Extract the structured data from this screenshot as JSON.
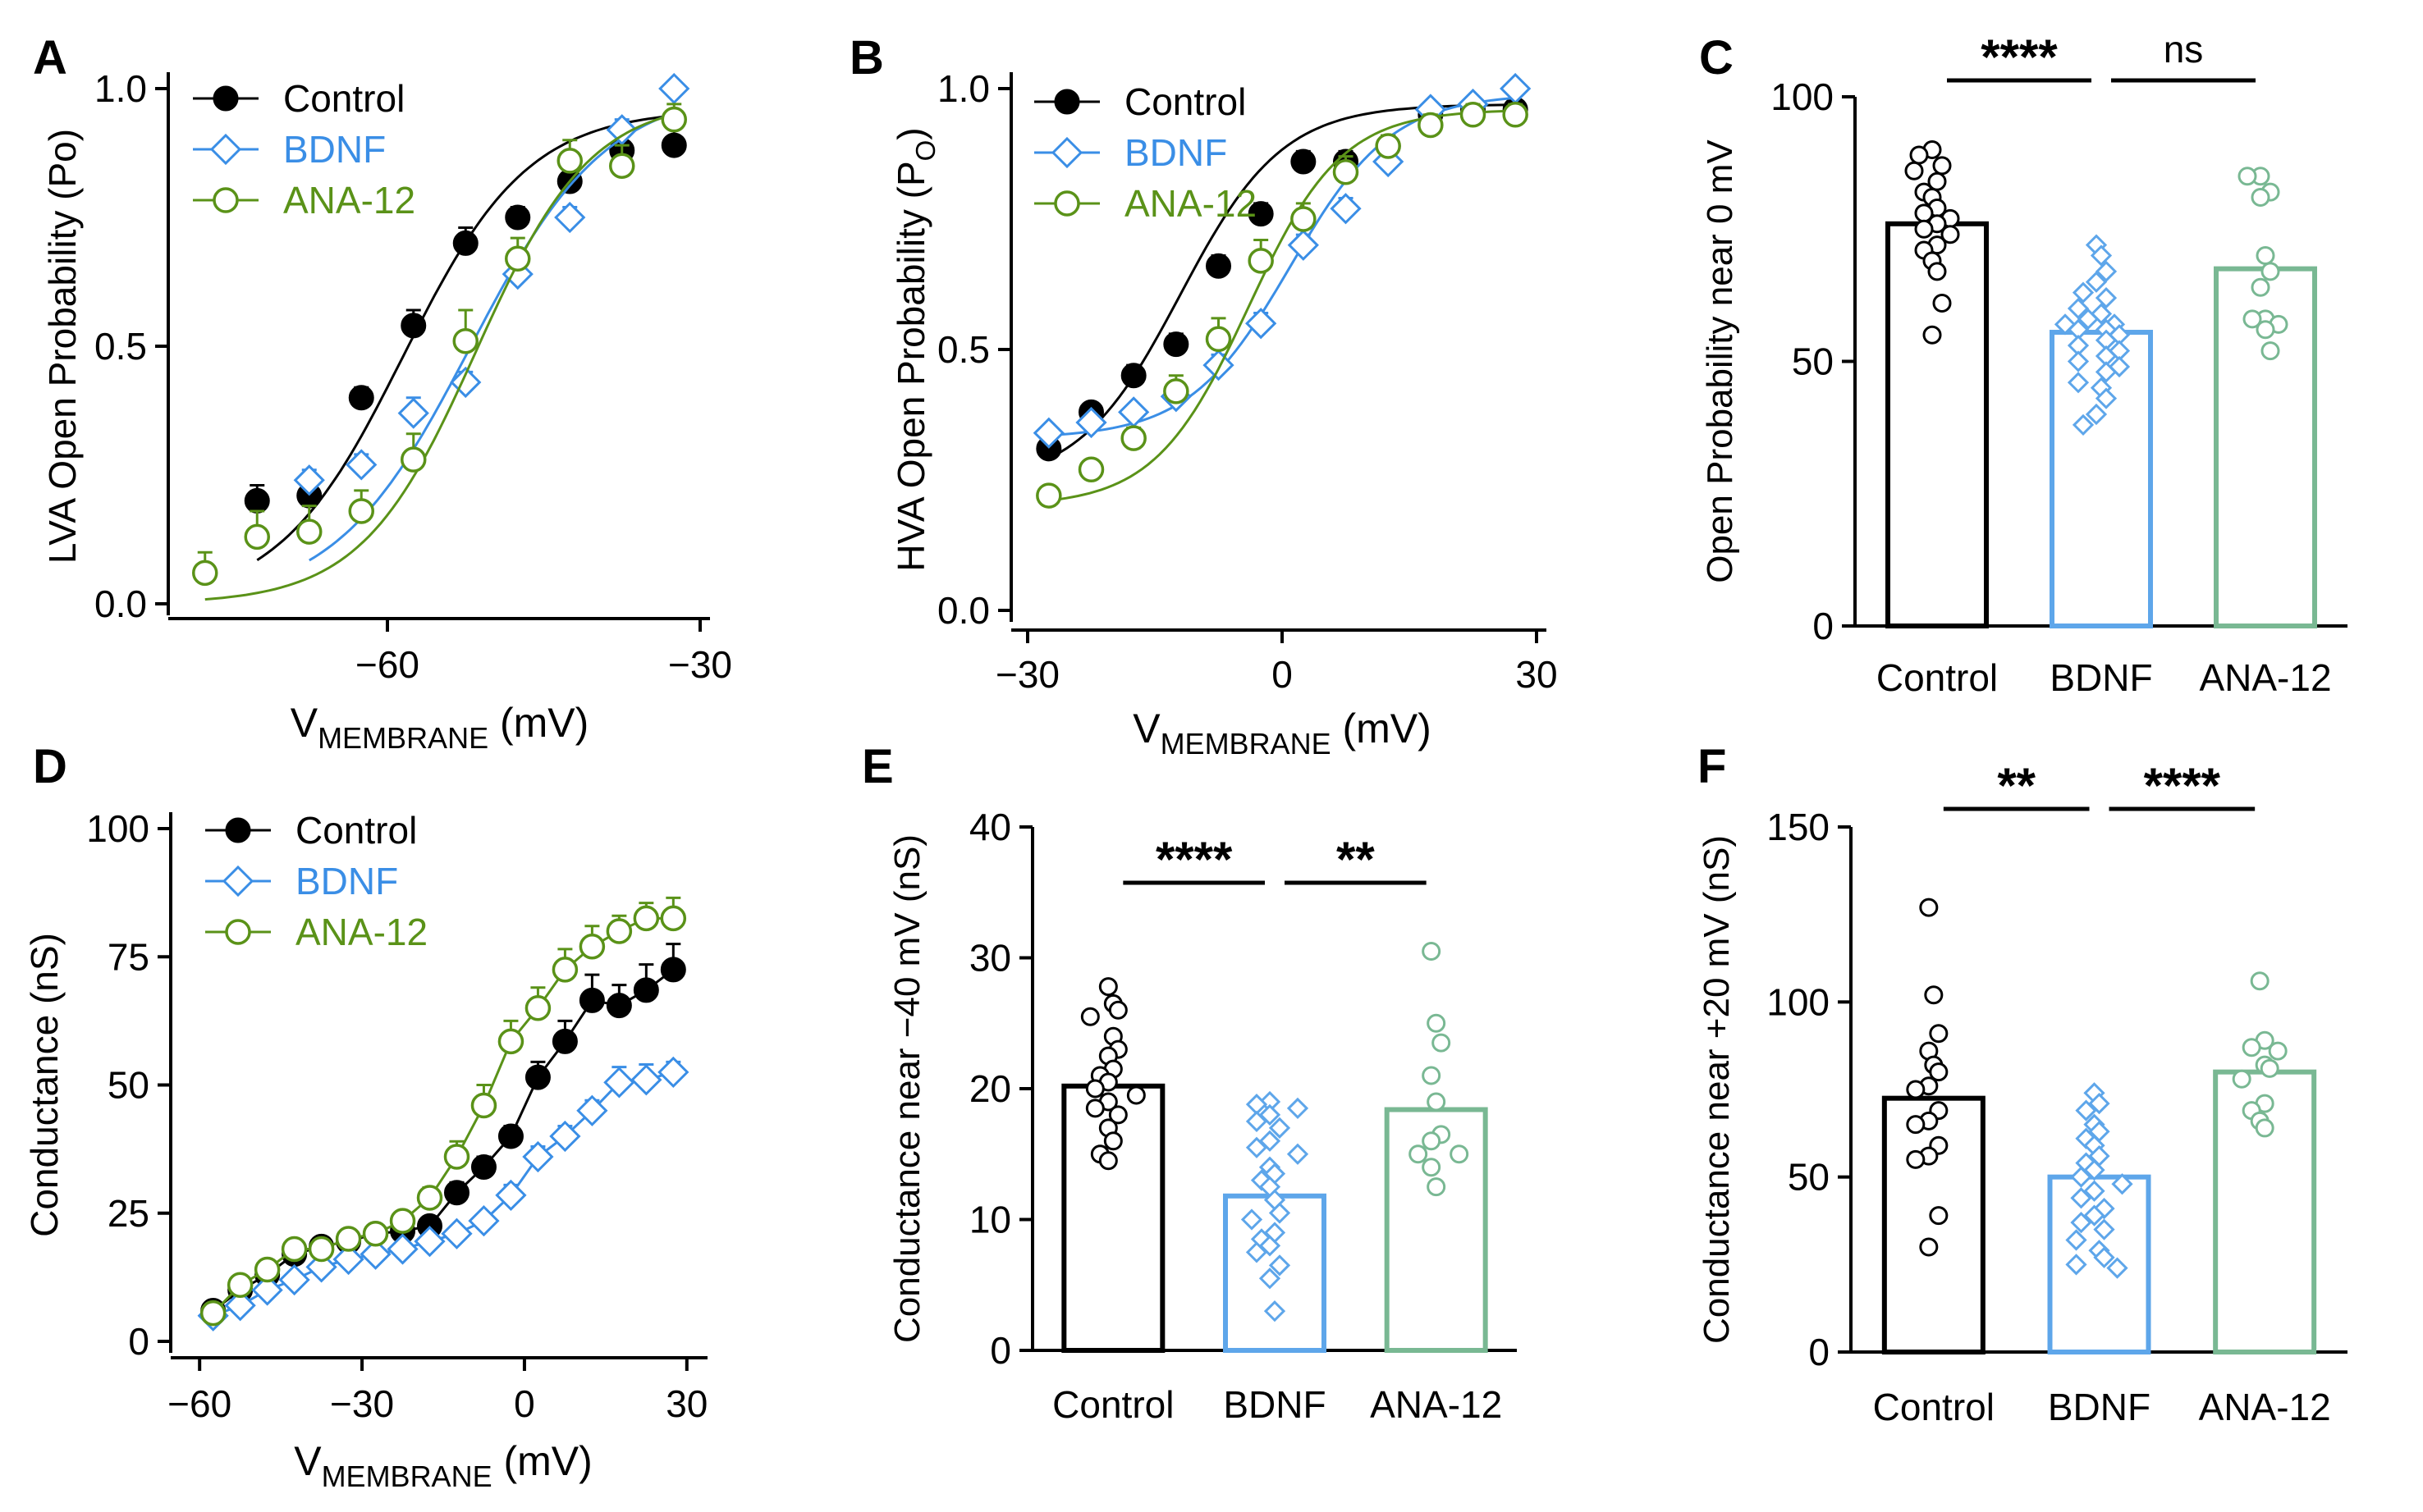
{
  "colors": {
    "control": "#000000",
    "bdnf": "#3a8ee6",
    "ana12": "#5a9218",
    "ana12_bar": "#79b893"
  },
  "chart_data": [
    {
      "panel": "A",
      "type": "line",
      "xlabel": {
        "main": "V",
        "sub": "MEMBRANE",
        "unit": " (mV)"
      },
      "ylabel": {
        "main": "LVA Open Probability (Po)",
        "sub": "",
        "unit": ""
      },
      "xlim": [
        -80,
        -30
      ],
      "ylim": [
        0,
        1
      ],
      "xticks": [
        -60,
        -30
      ],
      "xtick_labels": [
        "−60",
        "−30"
      ],
      "yticks": [
        0,
        0.5,
        1
      ],
      "ytick_labels": [
        "0.0",
        "0.5",
        "1.0"
      ],
      "legend_position": "top-left",
      "series": [
        {
          "name": "Control",
          "color": "#000000",
          "marker": "circle-filled",
          "x": [
            -72.5,
            -67.5,
            -62.5,
            -57.5,
            -52.5,
            -47.5,
            -42.5,
            -37.5,
            -32.5
          ],
          "y": [
            0.2,
            0.21,
            0.4,
            0.54,
            0.7,
            0.75,
            0.82,
            0.88,
            0.89
          ],
          "err": [
            0.03,
            0.03,
            0.02,
            0.03,
            0.03,
            0.02,
            0.02,
            0.03,
            0.04
          ],
          "fit": {
            "vhalf": -58.5,
            "k": 6.0,
            "bottom": 0.0,
            "top": 0.96
          }
        },
        {
          "name": "BDNF",
          "color": "#3a8ee6",
          "marker": "diamond-open",
          "x": [
            -67.5,
            -62.5,
            -57.5,
            -52.5,
            -47.5,
            -42.5,
            -37.5,
            -32.5
          ],
          "y": [
            0.24,
            0.27,
            0.37,
            0.43,
            0.64,
            0.75,
            0.92,
            1.0
          ],
          "err": [
            0.02,
            0.02,
            0.03,
            0.02,
            0.03,
            0.02,
            0.02,
            0.01
          ],
          "fit": {
            "vhalf": -52,
            "k": 6.5,
            "bottom": 0.0,
            "top": 1.0
          }
        },
        {
          "name": "ANA-12",
          "color": "#5a9218",
          "marker": "circle-open",
          "x": [
            -77.5,
            -72.5,
            -67.5,
            -62.5,
            -57.5,
            -52.5,
            -47.5,
            -42.5,
            -37.5,
            -32.5
          ],
          "y": [
            0.06,
            0.13,
            0.14,
            0.18,
            0.28,
            0.51,
            0.67,
            0.86,
            0.85,
            0.94
          ],
          "err": [
            0.04,
            0.05,
            0.05,
            0.04,
            0.05,
            0.06,
            0.04,
            0.04,
            0.04,
            0.03
          ],
          "fit": {
            "vhalf": -51.5,
            "k": 5.5,
            "bottom": 0.0,
            "top": 0.98
          }
        }
      ]
    },
    {
      "panel": "B",
      "type": "line",
      "xlabel": {
        "main": "V",
        "sub": "MEMBRANE",
        "unit": " (mV)"
      },
      "ylabel": {
        "main": "HVA Open Probability (P",
        "sub": "O",
        "unit": ")"
      },
      "xlim": [
        -30,
        30
      ],
      "ylim": [
        0,
        1
      ],
      "xticks": [
        -30,
        0,
        30
      ],
      "xtick_labels": [
        "−30",
        "0",
        "30"
      ],
      "yticks": [
        0,
        0.5,
        1
      ],
      "ytick_labels": [
        "0.0",
        "0.5",
        "1.0"
      ],
      "legend_position": "top-left",
      "series": [
        {
          "name": "Control",
          "color": "#000000",
          "marker": "circle-filled",
          "x": [
            -27.5,
            -22.5,
            -17.5,
            -12.5,
            -7.5,
            -2.5,
            2.5,
            7.5,
            12.5,
            17.5,
            22.5,
            27.5
          ],
          "y": [
            0.31,
            0.38,
            0.45,
            0.51,
            0.66,
            0.76,
            0.86,
            0.86,
            0.89,
            0.95,
            0.96,
            0.96
          ],
          "err": [
            0.01,
            0.01,
            0.02,
            0.02,
            0.02,
            0.02,
            0.02,
            0.02,
            0.02,
            0.01,
            0.01,
            0.01
          ],
          "fit": {
            "vhalf": -12,
            "k": 6.0,
            "bottom": 0.24,
            "top": 0.97
          }
        },
        {
          "name": "BDNF",
          "color": "#3a8ee6",
          "marker": "diamond-open",
          "x": [
            -27.5,
            -22.5,
            -17.5,
            -12.5,
            -7.5,
            -2.5,
            2.5,
            7.5,
            12.5,
            17.5,
            22.5,
            27.5
          ],
          "y": [
            0.34,
            0.36,
            0.38,
            0.41,
            0.47,
            0.55,
            0.7,
            0.77,
            0.86,
            0.96,
            0.97,
            1.0
          ],
          "err": [
            0.01,
            0.01,
            0.01,
            0.02,
            0.02,
            0.02,
            0.02,
            0.02,
            0.02,
            0.01,
            0.01,
            0.01
          ],
          "fit": {
            "vhalf": 1,
            "k": 6.0,
            "bottom": 0.33,
            "top": 0.99
          }
        },
        {
          "name": "ANA-12",
          "color": "#5a9218",
          "marker": "circle-open",
          "x": [
            -27.5,
            -22.5,
            -17.5,
            -12.5,
            -7.5,
            -2.5,
            2.5,
            7.5,
            12.5,
            17.5,
            22.5,
            27.5
          ],
          "y": [
            0.22,
            0.27,
            0.33,
            0.42,
            0.52,
            0.67,
            0.75,
            0.84,
            0.89,
            0.93,
            0.95,
            0.95
          ],
          "err": [
            0.01,
            0.01,
            0.02,
            0.03,
            0.04,
            0.04,
            0.03,
            0.03,
            0.02,
            0.02,
            0.02,
            0.02
          ],
          "fit": {
            "vhalf": -4,
            "k": 5.5,
            "bottom": 0.2,
            "top": 0.96
          }
        }
      ]
    },
    {
      "panel": "C",
      "type": "bar",
      "ylabel": "Open Probability near 0 mV",
      "ylim": [
        0,
        100
      ],
      "yticks": [
        0,
        50,
        100
      ],
      "ytick_labels": [
        "0",
        "50",
        "100"
      ],
      "categories": [
        "Control",
        "BDNF",
        "ANA-12"
      ],
      "values": [
        76,
        55.5,
        67.5
      ],
      "colors": [
        "#000000",
        "#5ea6ea",
        "#79b893"
      ],
      "markers": [
        "circle",
        "diamond",
        "circle"
      ],
      "points": [
        [
          90,
          89,
          87,
          86,
          84,
          82,
          81,
          79,
          78,
          77,
          76,
          75,
          74,
          72,
          71,
          69,
          67,
          61,
          55
        ],
        [
          72,
          70,
          67,
          65,
          63,
          62,
          60,
          59,
          58,
          57,
          57,
          56,
          56,
          55,
          54,
          53,
          52,
          51,
          50,
          49,
          48,
          46,
          45,
          43,
          40,
          38
        ],
        [
          85,
          85,
          82,
          81,
          70,
          67,
          64,
          58,
          58,
          57,
          56,
          52
        ]
      ],
      "significance": [
        {
          "from": 0,
          "to": 1,
          "label": "****"
        },
        {
          "from": 1,
          "to": 2,
          "label": "ns"
        }
      ]
    },
    {
      "panel": "D",
      "type": "line",
      "xlabel": {
        "main": "V",
        "sub": "MEMBRANE",
        "unit": " (mV)"
      },
      "ylabel": {
        "main": "Conductance (nS)",
        "sub": "",
        "unit": ""
      },
      "xlim": [
        -62,
        32
      ],
      "ylim": [
        0,
        100
      ],
      "xticks": [
        -60,
        -30,
        0,
        30
      ],
      "xtick_labels": [
        "−60",
        "−30",
        "0",
        "30"
      ],
      "yticks": [
        0,
        25,
        50,
        75,
        100
      ],
      "ytick_labels": [
        "0",
        "25",
        "50",
        "75",
        "100"
      ],
      "legend_position": "top-left",
      "series": [
        {
          "name": "Control",
          "color": "#000000",
          "marker": "circle-filled",
          "x": [
            -57.5,
            -52.5,
            -47.5,
            -42.5,
            -37.5,
            -32.5,
            -27.5,
            -22.5,
            -17.5,
            -12.5,
            -7.5,
            -2.5,
            2.5,
            7.5,
            12.5,
            17.5,
            22.5,
            27.5
          ],
          "y": [
            6,
            10,
            13,
            17,
            18.5,
            19.5,
            21,
            21.5,
            22.5,
            29,
            34,
            40,
            51.5,
            58.5,
            66.5,
            65.5,
            68.5,
            72.5
          ],
          "err": [
            1,
            1,
            1,
            1,
            1,
            1,
            1,
            1,
            1,
            2,
            2,
            2,
            3,
            4,
            5,
            4,
            5,
            5
          ]
        },
        {
          "name": "BDNF",
          "color": "#3a8ee6",
          "marker": "diamond-open",
          "x": [
            -57.5,
            -52.5,
            -47.5,
            -42.5,
            -37.5,
            -32.5,
            -27.5,
            -22.5,
            -17.5,
            -12.5,
            -7.5,
            -2.5,
            2.5,
            7.5,
            12.5,
            17.5,
            22.5,
            27.5
          ],
          "y": [
            5,
            7,
            10,
            12,
            14.5,
            16,
            17,
            18,
            19.5,
            21,
            23.5,
            28.5,
            36,
            40,
            45,
            50.5,
            51,
            52.5
          ],
          "err": [
            1,
            1,
            1,
            1,
            1,
            1,
            1,
            1,
            1,
            1,
            1,
            2,
            2,
            2,
            2,
            3,
            3,
            2
          ]
        },
        {
          "name": "ANA-12",
          "color": "#5a9218",
          "marker": "circle-open",
          "x": [
            -57.5,
            -52.5,
            -47.5,
            -42.5,
            -37.5,
            -32.5,
            -27.5,
            -22.5,
            -17.5,
            -12.5,
            -7.5,
            -2.5,
            2.5,
            7.5,
            12.5,
            17.5,
            22.5,
            27.5
          ],
          "y": [
            5.5,
            11,
            14,
            18,
            18,
            20,
            21,
            23.5,
            28,
            36,
            46,
            58.5,
            65,
            72.5,
            77,
            80,
            82.5,
            82.5
          ],
          "err": [
            1,
            1,
            1,
            1,
            1,
            1,
            1,
            1,
            2,
            3,
            4,
            4,
            4,
            4,
            4,
            3,
            3,
            4
          ]
        }
      ]
    },
    {
      "panel": "E",
      "type": "bar",
      "ylabel": "Conductance near −40 mV (nS)",
      "ylim": [
        0,
        40
      ],
      "yticks": [
        0,
        10,
        20,
        30,
        40
      ],
      "ytick_labels": [
        "0",
        "10",
        "20",
        "30",
        "40"
      ],
      "categories": [
        "Control",
        "BDNF",
        "ANA-12"
      ],
      "values": [
        20.2,
        11.8,
        18.4
      ],
      "colors": [
        "#000000",
        "#5ea6ea",
        "#79b893"
      ],
      "markers": [
        "circle",
        "diamond",
        "circle"
      ],
      "points": [
        [
          27.8,
          26.5,
          26,
          25.5,
          24,
          23,
          22.5,
          21.5,
          21,
          20.5,
          20,
          19.5,
          19,
          18.5,
          18,
          17,
          16,
          15,
          14.5
        ],
        [
          19,
          18.8,
          18.5,
          18,
          17.5,
          17,
          16,
          15.5,
          15,
          14,
          13.5,
          13,
          12.5,
          11.5,
          10.5,
          10,
          9,
          8.5,
          8,
          7.5,
          6.5,
          5.5,
          3
        ],
        [
          30.5,
          25,
          23.5,
          21,
          19,
          16.5,
          16,
          15,
          15,
          14,
          12.5
        ]
      ],
      "significance": [
        {
          "from": 0,
          "to": 1,
          "label": "****"
        },
        {
          "from": 1,
          "to": 2,
          "label": "**"
        }
      ]
    },
    {
      "panel": "F",
      "type": "bar",
      "ylabel": "Conductance near +20 mV (nS)",
      "ylim": [
        0,
        150
      ],
      "yticks": [
        0,
        50,
        100,
        150
      ],
      "ytick_labels": [
        "0",
        "50",
        "100",
        "150"
      ],
      "categories": [
        "Control",
        "BDNF",
        "ANA-12"
      ],
      "values": [
        72.5,
        50,
        80
      ],
      "colors": [
        "#000000",
        "#5ea6ea",
        "#79b893"
      ],
      "markers": [
        "circle",
        "diamond",
        "circle"
      ],
      "points": [
        [
          127,
          102,
          91,
          86,
          82,
          80,
          76,
          75,
          69,
          66,
          65,
          59,
          56,
          55,
          39,
          30
        ],
        [
          74,
          71,
          69,
          65,
          63,
          61,
          59,
          56,
          54,
          52,
          50,
          48,
          46,
          44,
          41,
          39,
          37,
          35,
          32,
          29,
          27,
          25,
          24
        ],
        [
          106,
          89,
          87,
          86,
          82,
          81,
          78,
          71,
          69,
          66,
          64
        ]
      ],
      "significance": [
        {
          "from": 0,
          "to": 1,
          "label": "**"
        },
        {
          "from": 1,
          "to": 2,
          "label": "****"
        }
      ]
    }
  ]
}
